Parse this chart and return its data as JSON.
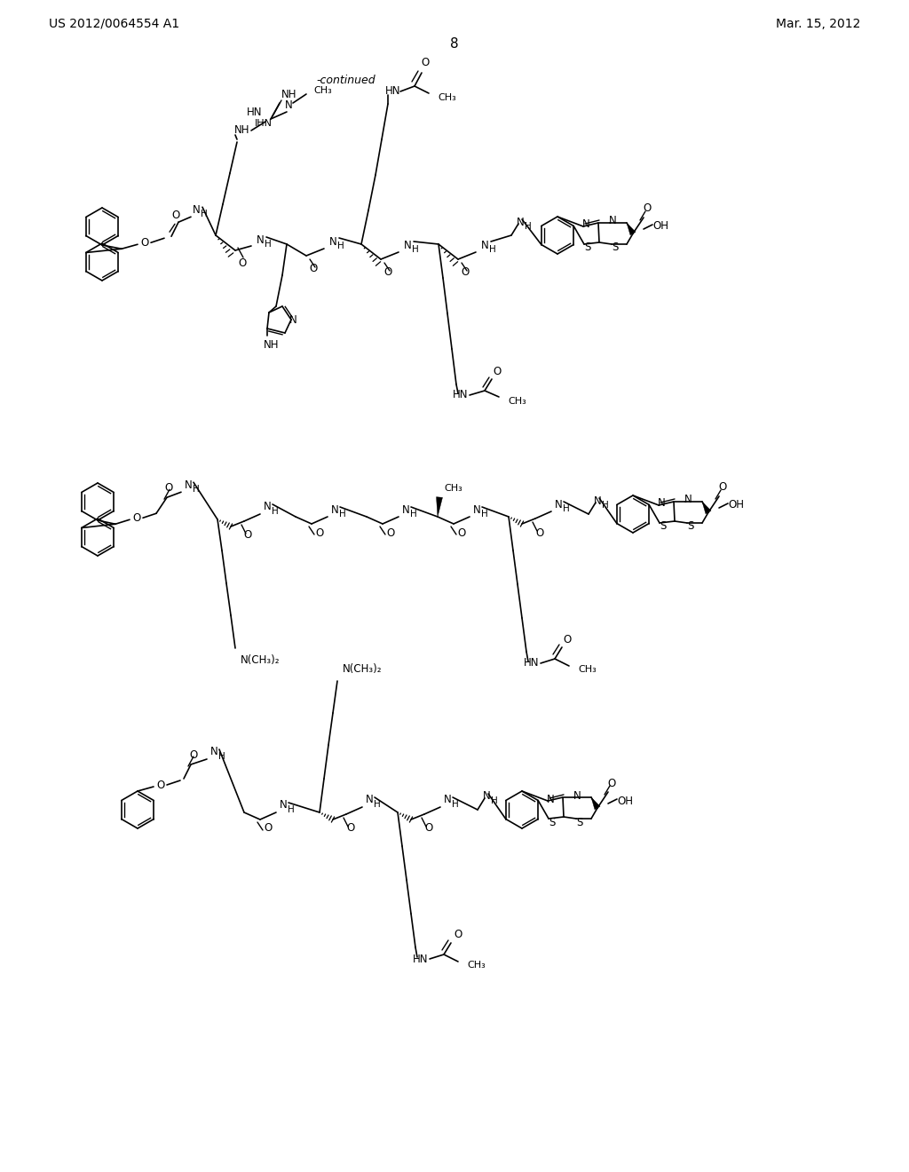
{
  "background": "#ffffff",
  "header_left": "US 2012/0064554 A1",
  "header_right": "Mar. 15, 2012",
  "page_number": "8",
  "continued": "-continued",
  "figsize": [
    10.24,
    13.2
  ],
  "dpi": 100
}
